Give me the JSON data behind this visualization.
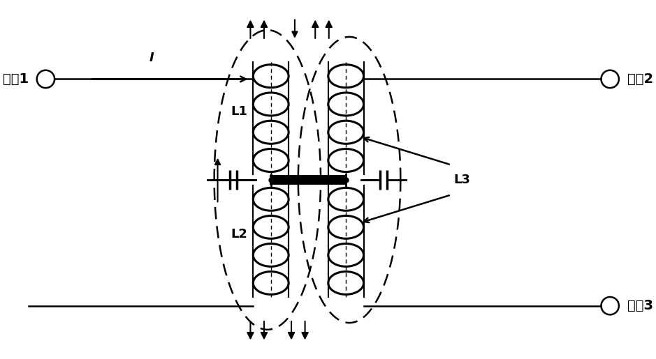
{
  "port1_label": "端口1",
  "port2_label": "端口2",
  "port3_label": "端口3",
  "L1_label": "L1",
  "L2_label": "L2",
  "L3_label": "L3",
  "current_label": "I",
  "bg_color": "#ffffff",
  "fig_width": 9.39,
  "fig_height": 5.15,
  "dpi": 100
}
